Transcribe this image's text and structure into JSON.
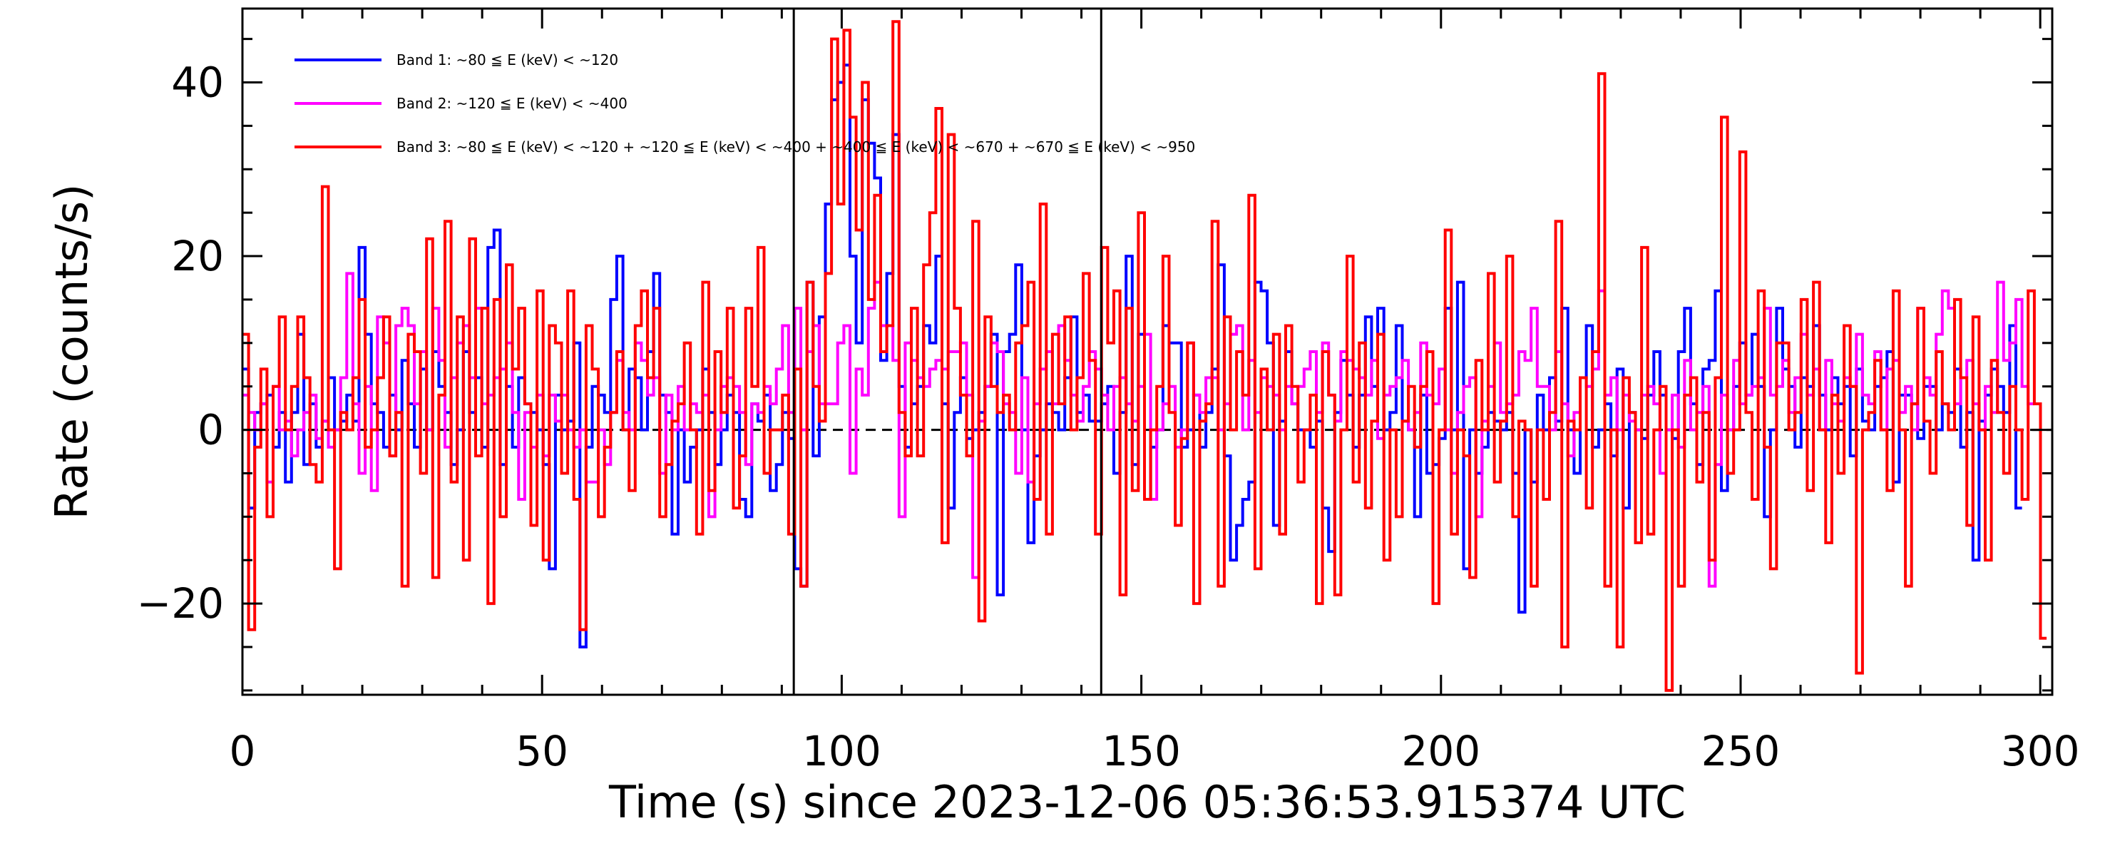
{
  "chart_data": {
    "type": "line",
    "xlabel": "Time (s) since 2023-12-06 05:36:53.915374 UTC",
    "ylabel": "Rate (counts/s)",
    "xlim": [
      0,
      302
    ],
    "ylim": [
      -30.5,
      48.5
    ],
    "x_ticks": [
      0,
      50,
      100,
      150,
      200,
      250,
      300
    ],
    "x_tick_labels": [
      "0",
      "50",
      "100",
      "150",
      "200",
      "250",
      "300"
    ],
    "y_ticks": [
      -20,
      0,
      20,
      40
    ],
    "y_tick_labels": [
      "−20",
      "0",
      "20",
      "40"
    ],
    "y_minor_step": 5,
    "x_minor_step": 10,
    "zero_line": {
      "y": 0,
      "style": "dashed"
    },
    "vertical_markers": [
      92.0,
      143.3
    ],
    "legend_position": "top-left",
    "bin_width_s": 1.024,
    "series": [
      {
        "name": "Band 1: ~80 ≦ E (keV) < ~120",
        "color": "#0000ff",
        "start": 0,
        "values": [
          7,
          -9,
          2,
          3,
          4,
          -2,
          2,
          -6,
          2,
          11,
          -4,
          3,
          -2,
          1,
          6,
          0,
          1,
          4,
          1,
          21,
          11,
          3,
          2,
          -2,
          4,
          0,
          8,
          3,
          -2,
          7,
          0,
          9,
          5,
          2,
          -4,
          0,
          9,
          2,
          6,
          -2,
          21,
          23,
          -4,
          5,
          -2,
          6,
          3,
          2,
          0,
          -4,
          -16,
          4,
          0,
          1,
          10,
          -25,
          -2,
          5,
          4,
          2,
          15,
          20,
          0,
          7,
          6,
          0,
          9,
          18,
          4,
          2,
          -12,
          0,
          -6,
          -2,
          0,
          7,
          2,
          -4,
          0,
          4,
          2,
          -8,
          -10,
          3,
          1,
          4,
          -7,
          -4,
          2,
          -1,
          -16,
          -18,
          17,
          -3,
          13,
          26,
          38,
          40,
          42,
          20,
          10,
          38,
          33,
          29,
          8,
          18,
          34,
          5,
          -2,
          3,
          5,
          12,
          10,
          20,
          3,
          -9,
          2,
          6,
          -1,
          0,
          2,
          5,
          11,
          -19,
          9,
          11,
          19,
          0,
          -13,
          -3,
          0,
          3,
          2,
          0,
          6,
          13,
          2,
          4,
          1,
          1,
          3,
          5,
          -5,
          2,
          20,
          -4,
          11,
          -8,
          -2,
          0,
          12,
          10,
          10,
          -2,
          0,
          4,
          -2,
          2,
          7,
          19,
          -3,
          -15,
          -11,
          -8,
          -6,
          17,
          16,
          10,
          -11,
          1,
          9,
          3,
          0,
          0,
          -2,
          1,
          -9,
          -14,
          2,
          8,
          4,
          -2,
          4,
          13,
          5,
          14,
          0,
          2,
          12,
          1,
          0,
          -10,
          4,
          -5,
          -4,
          -1,
          14,
          0,
          17,
          -16,
          0,
          -5,
          -2,
          2,
          1,
          0,
          2,
          -5,
          -21,
          0,
          -6,
          4,
          0,
          6,
          1,
          14,
          0,
          -5,
          6,
          12,
          -2,
          0,
          3,
          -3,
          7,
          -9,
          2,
          0,
          -1,
          4,
          9,
          4,
          0,
          -1,
          9,
          14,
          3,
          -4,
          7,
          8,
          16,
          -7,
          0,
          5,
          10,
          4,
          11,
          5,
          -10,
          0,
          14,
          7,
          5,
          -2,
          6,
          5,
          12,
          4,
          0,
          6,
          3,
          5,
          -3,
          7,
          1,
          0,
          5,
          6,
          9,
          -6,
          4,
          4,
          3,
          -1,
          5,
          5,
          0,
          3,
          2,
          7,
          -2,
          2,
          -15,
          1,
          4,
          7,
          5,
          2,
          12,
          -9
        ]
      },
      {
        "name": "Band 2: ~120 ≦ E (keV) < ~400",
        "color": "#ff00ff",
        "start": 0,
        "values": [
          4,
          2,
          0,
          3,
          -6,
          5,
          0,
          1,
          -3,
          0,
          2,
          4,
          -1,
          1,
          -2,
          0,
          6,
          18,
          3,
          -5,
          5,
          -7,
          13,
          10,
          -3,
          12,
          14,
          12,
          3,
          9,
          0,
          14,
          8,
          -2,
          6,
          10,
          12,
          6,
          14,
          3,
          4,
          6,
          7,
          10,
          2,
          -8,
          2,
          -2,
          4,
          -3,
          4,
          1,
          4,
          0,
          -2,
          0,
          -6,
          -6,
          0,
          -4,
          2,
          8,
          2,
          0,
          10,
          8,
          4,
          6,
          -5,
          4,
          0,
          5,
          0,
          3,
          2,
          4,
          -10,
          0,
          5,
          6,
          5,
          2,
          -4,
          3,
          2,
          5,
          3,
          7,
          12,
          2,
          14,
          0,
          9,
          12,
          3,
          3,
          3,
          10,
          12,
          -5,
          7,
          4,
          14,
          17,
          12,
          12,
          8,
          -10,
          10,
          8,
          6,
          5,
          7,
          8,
          7,
          9,
          9,
          10,
          4,
          -17,
          1,
          5,
          10,
          9,
          3,
          2,
          -5,
          6,
          -6,
          3,
          7,
          9,
          3,
          12,
          8,
          4,
          1,
          5,
          9,
          7,
          4,
          0,
          5,
          6,
          3,
          1,
          5,
          11,
          -8,
          0,
          3,
          5,
          -2,
          0,
          10,
          4,
          2,
          6,
          6,
          0,
          3,
          11,
          12,
          0,
          8,
          2,
          6,
          5,
          4,
          0,
          5,
          3,
          5,
          7,
          9,
          2,
          10,
          4,
          1,
          9,
          8,
          7,
          6,
          4,
          8,
          -1,
          4,
          5,
          6,
          8,
          0,
          2,
          10,
          4,
          3,
          7,
          0,
          -5,
          2,
          5,
          6,
          -10,
          1,
          5,
          10,
          2,
          3,
          4,
          9,
          8,
          14,
          5,
          5,
          0,
          9,
          3,
          -3,
          2,
          6,
          5,
          7,
          16,
          4,
          6,
          0,
          4,
          1,
          0,
          4,
          5,
          3,
          -5,
          0,
          4,
          -2,
          8,
          0,
          2,
          5,
          -18,
          -4,
          4,
          0,
          8,
          3,
          4,
          5,
          6,
          14,
          4,
          5,
          8,
          2,
          6,
          11,
          4,
          7,
          0,
          8,
          3,
          1,
          6,
          5,
          11,
          4,
          3,
          9,
          0,
          7,
          8,
          2,
          5,
          0,
          14,
          6,
          4,
          11,
          16,
          14,
          3,
          6,
          8,
          3,
          0,
          5,
          2,
          17,
          8,
          10,
          15,
          5,
          3
        ]
      },
      {
        "name": "Band 3: ~80 ≦ E (keV) < ~120 + ~120 ≦ E (keV) < ~400 + ~400 ≦ E (keV) < ~670 + ~670 ≦ E (keV) < ~950",
        "color": "#ff0000",
        "start": 0,
        "values": [
          11,
          -23,
          -2,
          7,
          -10,
          5,
          13,
          0,
          5,
          13,
          6,
          -4,
          -6,
          28,
          0,
          -16,
          2,
          0,
          6,
          15,
          -2,
          0,
          6,
          13,
          -3,
          2,
          -18,
          11,
          9,
          -5,
          22,
          -17,
          4,
          24,
          -6,
          13,
          -15,
          22,
          -3,
          14,
          -20,
          15,
          -10,
          19,
          7,
          14,
          3,
          -11,
          16,
          -15,
          12,
          10,
          -5,
          16,
          -8,
          -23,
          12,
          7,
          -10,
          -2,
          2,
          9,
          0,
          -7,
          12,
          16,
          6,
          14,
          -10,
          -4,
          1,
          3,
          10,
          0,
          -12,
          17,
          -7,
          9,
          2,
          14,
          -9,
          -3,
          14,
          5,
          21,
          -5,
          0,
          0,
          4,
          -12,
          7,
          -18,
          17,
          5,
          1,
          18,
          45,
          26,
          46,
          36,
          23,
          40,
          15,
          27,
          9,
          12,
          47,
          2,
          -3,
          14,
          -3,
          19,
          25,
          37,
          -13,
          34,
          14,
          4,
          -3,
          24,
          -22,
          13,
          5,
          2,
          4,
          0,
          10,
          12,
          17,
          -8,
          26,
          -12,
          11,
          3,
          13,
          0,
          6,
          18,
          8,
          -12,
          21,
          10,
          16,
          -19,
          14,
          -7,
          25,
          -8,
          0,
          5,
          20,
          2,
          -11,
          -1,
          10,
          -20,
          1,
          3,
          24,
          -18,
          13,
          0,
          9,
          4,
          27,
          -16,
          7,
          0,
          11,
          -12,
          12,
          5,
          -6,
          0,
          4,
          -20,
          9,
          4,
          -19,
          0,
          20,
          -6,
          10,
          -9,
          1,
          11,
          -15,
          0,
          -10,
          1,
          5,
          -2,
          5,
          9,
          -20,
          0,
          23,
          -12,
          0,
          -3,
          -17,
          8,
          0,
          18,
          -6,
          1,
          20,
          -10,
          1,
          0,
          -18,
          0,
          -8,
          2,
          24,
          -25,
          1,
          0,
          6,
          -9,
          9,
          41,
          -18,
          0,
          -25,
          6,
          2,
          -13,
          21,
          -12,
          0,
          5,
          -30,
          0,
          -18,
          4,
          6,
          -6,
          2,
          -15,
          6,
          36,
          -5,
          0,
          32,
          2,
          -8,
          16,
          -2,
          -16,
          10,
          10,
          0,
          2,
          15,
          -7,
          17,
          0,
          -13,
          4,
          -5,
          12,
          5,
          -28,
          0,
          2,
          8,
          0,
          -7,
          16,
          0,
          -18,
          3,
          14,
          1,
          -5,
          9,
          3,
          0,
          15,
          6,
          -11,
          13,
          0,
          -15,
          8,
          2,
          -5,
          5,
          0,
          -8,
          16,
          3,
          -24
        ]
      }
    ]
  }
}
